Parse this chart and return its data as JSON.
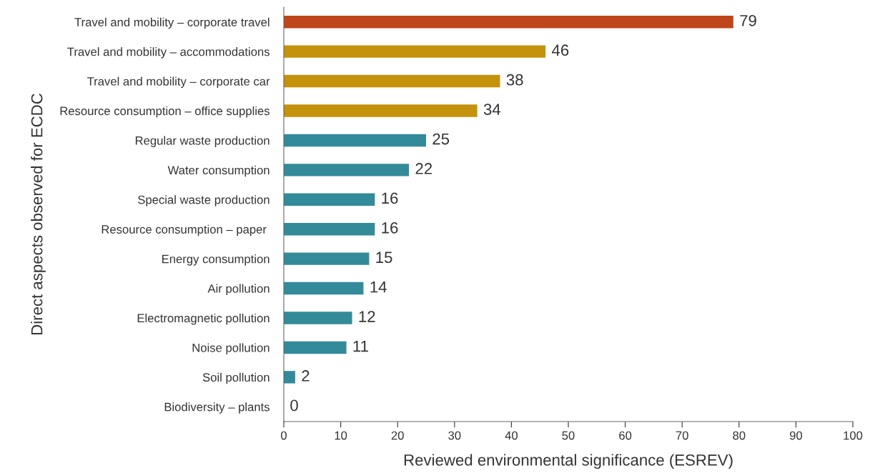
{
  "chart_data": {
    "type": "bar",
    "orientation": "horizontal",
    "xlabel": "Reviewed environmental significance (ESREV)",
    "ylabel": "Direct aspects observed for ECDC",
    "categories": [
      "Travel and mobility – corporate travel",
      "Travel and mobility – accommodations",
      "Travel and mobility – corporate car",
      "Resource consumption – office supplies",
      "Regular waste production",
      "Water consumption",
      "Special waste production",
      "Resource consumption – paper ",
      "Energy consumption",
      "Air pollution",
      "Electromagnetic pollution",
      "Noise pollution",
      "Soil pollution",
      "Biodiversity – plants"
    ],
    "values": [
      79,
      46,
      38,
      34,
      25,
      22,
      16,
      16,
      15,
      14,
      12,
      11,
      2,
      0
    ],
    "colors": [
      "#bf461a",
      "#c5920b",
      "#c5920b",
      "#c5920b",
      "#338b99",
      "#338b99",
      "#338b99",
      "#338b99",
      "#338b99",
      "#338b99",
      "#338b99",
      "#338b99",
      "#338b99",
      "#338b99"
    ],
    "xlim": [
      0,
      100
    ],
    "xticks": [
      0,
      10,
      20,
      30,
      40,
      50,
      60,
      70,
      80,
      90,
      100
    ],
    "data_labels": true,
    "grid": false,
    "legend": false
  }
}
